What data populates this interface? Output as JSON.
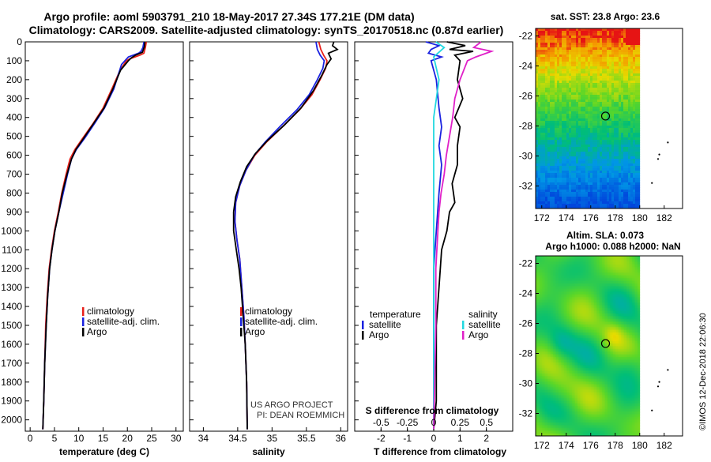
{
  "header": {
    "title_line1": "Argo profile: aoml 5903791_210 18-May-2017 27.34S 177.21E (DM data)",
    "title_line2": "Climatology: CARS2009. Satellite-adjusted climatology: synTS_20170518.nc (0.87d earlier)"
  },
  "colors": {
    "climatology": "#e8201a",
    "satellite": "#1a22e0",
    "argo": "#000000",
    "sal_satellite": "#22d8e0",
    "sal_argo": "#e020c8"
  },
  "depth_axis": {
    "ticks": [
      0,
      100,
      200,
      300,
      400,
      500,
      600,
      700,
      800,
      900,
      1000,
      1100,
      1200,
      1300,
      1400,
      1500,
      1600,
      1700,
      1800,
      1900,
      2000
    ],
    "labels": [
      "0",
      "100",
      "200",
      "300",
      "400",
      "500",
      "600",
      "700",
      "800",
      "900",
      "1000",
      "1100",
      "1200",
      "1300",
      "1400",
      "1500",
      "1600",
      "1700",
      "1800",
      "1900",
      "2000"
    ],
    "range": [
      0,
      2060
    ]
  },
  "annotation": {
    "line1": "US ARGO PROJECT",
    "line2": "PI: DEAN ROEMMICH"
  },
  "watermark": "©IMOS 12-Dec-2018 22:06:30",
  "chart_data": [
    {
      "type": "line",
      "name": "temperature-profile",
      "xlabel": "temperature (deg C)",
      "xlim": [
        -1,
        31.5
      ],
      "xticks": [
        0,
        5,
        10,
        15,
        20,
        25,
        30
      ],
      "xticklabels": [
        "0",
        "5",
        "10",
        "15",
        "20",
        "25",
        "30"
      ],
      "legend": [
        "climatology",
        "satellite-adj. clim.",
        "Argo"
      ],
      "series": [
        {
          "name": "climatology",
          "color_key": "climatology",
          "points": [
            [
              23.9,
              0
            ],
            [
              23.7,
              30
            ],
            [
              23.4,
              60
            ],
            [
              22.6,
              70
            ],
            [
              20.5,
              90
            ],
            [
              19.8,
              100
            ],
            [
              18.5,
              150
            ],
            [
              16.8,
              250
            ],
            [
              15.0,
              350
            ],
            [
              13.0,
              430
            ],
            [
              10.8,
              510
            ],
            [
              9.2,
              570
            ],
            [
              8.2,
              620
            ],
            [
              7.4,
              700
            ],
            [
              6.5,
              800
            ],
            [
              5.8,
              900
            ],
            [
              5.0,
              1000
            ],
            [
              4.4,
              1100
            ],
            [
              3.9,
              1200
            ],
            [
              3.5,
              1350
            ],
            [
              3.2,
              1500
            ],
            [
              3.0,
              1700
            ],
            [
              2.8,
              1900
            ],
            [
              2.6,
              2050
            ]
          ]
        },
        {
          "name": "satellite-adj. clim.",
          "color_key": "satellite",
          "points": [
            [
              23.4,
              0
            ],
            [
              23.2,
              30
            ],
            [
              22.8,
              50
            ],
            [
              22.3,
              60
            ],
            [
              20.2,
              80
            ],
            [
              18.8,
              120
            ],
            [
              17.2,
              250
            ],
            [
              15.3,
              350
            ],
            [
              13.3,
              430
            ],
            [
              11.2,
              510
            ],
            [
              9.5,
              570
            ],
            [
              8.5,
              620
            ],
            [
              7.7,
              700
            ],
            [
              6.8,
              800
            ],
            [
              5.9,
              900
            ],
            [
              5.1,
              1000
            ],
            [
              4.5,
              1100
            ],
            [
              4.0,
              1200
            ],
            [
              3.6,
              1350
            ],
            [
              3.3,
              1500
            ],
            [
              3.0,
              1700
            ],
            [
              2.8,
              1900
            ],
            [
              2.6,
              2050
            ]
          ]
        },
        {
          "name": "Argo",
          "color_key": "argo",
          "points": [
            [
              23.6,
              0
            ],
            [
              23.5,
              25
            ],
            [
              23.1,
              55
            ],
            [
              21.7,
              70
            ],
            [
              20.8,
              85
            ],
            [
              20.2,
              100
            ],
            [
              18.6,
              150
            ],
            [
              17.0,
              250
            ],
            [
              15.2,
              350
            ],
            [
              13.1,
              430
            ],
            [
              11.0,
              510
            ],
            [
              9.4,
              570
            ],
            [
              8.5,
              620
            ],
            [
              7.6,
              700
            ],
            [
              6.6,
              800
            ],
            [
              5.9,
              900
            ],
            [
              5.1,
              1000
            ],
            [
              4.5,
              1100
            ],
            [
              4.0,
              1200
            ],
            [
              3.6,
              1350
            ],
            [
              3.3,
              1500
            ],
            [
              3.0,
              1700
            ],
            [
              2.8,
              1900
            ],
            [
              2.6,
              2050
            ]
          ]
        }
      ]
    },
    {
      "type": "line",
      "name": "salinity-profile",
      "xlabel": "salinity",
      "xlim": [
        33.8,
        36.1
      ],
      "xticks": [
        34,
        34.5,
        35,
        35.5,
        36
      ],
      "xticklabels": [
        "34",
        "34.5",
        "35",
        "35.5",
        "36"
      ],
      "legend": [
        "climatology",
        "satellite-adj. clim.",
        "Argo"
      ],
      "series": [
        {
          "name": "climatology",
          "color_key": "climatology",
          "points": [
            [
              35.68,
              0
            ],
            [
              35.71,
              40
            ],
            [
              35.75,
              70
            ],
            [
              35.8,
              100
            ],
            [
              35.78,
              140
            ],
            [
              35.7,
              200
            ],
            [
              35.58,
              280
            ],
            [
              35.4,
              360
            ],
            [
              35.15,
              450
            ],
            [
              34.92,
              530
            ],
            [
              34.75,
              600
            ],
            [
              34.62,
              680
            ],
            [
              34.53,
              760
            ],
            [
              34.47,
              850
            ],
            [
              34.46,
              950
            ],
            [
              34.49,
              1050
            ],
            [
              34.53,
              1150
            ],
            [
              34.56,
              1300
            ],
            [
              34.59,
              1450
            ],
            [
              34.61,
              1600
            ],
            [
              34.63,
              1800
            ],
            [
              34.64,
              2050
            ]
          ]
        },
        {
          "name": "satellite-adj. clim.",
          "color_key": "satellite",
          "points": [
            [
              35.64,
              0
            ],
            [
              35.66,
              40
            ],
            [
              35.7,
              70
            ],
            [
              35.76,
              100
            ],
            [
              35.74,
              140
            ],
            [
              35.66,
              200
            ],
            [
              35.54,
              280
            ],
            [
              35.36,
              360
            ],
            [
              35.11,
              450
            ],
            [
              34.9,
              530
            ],
            [
              34.74,
              600
            ],
            [
              34.62,
              680
            ],
            [
              34.53,
              760
            ],
            [
              34.47,
              850
            ],
            [
              34.46,
              950
            ],
            [
              34.49,
              1050
            ],
            [
              34.53,
              1150
            ],
            [
              34.56,
              1300
            ],
            [
              34.59,
              1450
            ],
            [
              34.61,
              1600
            ],
            [
              34.63,
              1800
            ],
            [
              34.64,
              2050
            ]
          ]
        },
        {
          "name": "Argo",
          "color_key": "argo",
          "points": [
            [
              35.9,
              0
            ],
            [
              35.88,
              20
            ],
            [
              35.95,
              40
            ],
            [
              35.82,
              60
            ],
            [
              35.86,
              90
            ],
            [
              35.8,
              120
            ],
            [
              35.72,
              180
            ],
            [
              35.6,
              260
            ],
            [
              35.42,
              350
            ],
            [
              35.18,
              440
            ],
            [
              34.94,
              520
            ],
            [
              34.76,
              590
            ],
            [
              34.63,
              660
            ],
            [
              34.54,
              740
            ],
            [
              34.47,
              820
            ],
            [
              34.44,
              900
            ],
            [
              34.44,
              1000
            ],
            [
              34.48,
              1100
            ],
            [
              34.52,
              1200
            ],
            [
              34.55,
              1300
            ],
            [
              34.58,
              1450
            ],
            [
              34.61,
              1600
            ],
            [
              34.63,
              1800
            ],
            [
              34.64,
              2050
            ]
          ]
        }
      ]
    },
    {
      "type": "line",
      "name": "difference-profile",
      "xlabel": "T difference from climatology",
      "xlim": [
        -3,
        3
      ],
      "xticks": [
        -2,
        -1,
        0,
        1,
        2
      ],
      "xticklabels": [
        "-2",
        "-1",
        "0",
        "1",
        "2"
      ],
      "top_label": "S difference from climatology",
      "top_ticks": [
        -0.5,
        -0.25,
        0,
        0.25,
        0.5
      ],
      "top_ticklabels": [
        "-0.5",
        "-0.25",
        "0",
        "0.25",
        "0.5"
      ],
      "legend_left_title": "temperature",
      "legend_left": [
        "satellite",
        "Argo"
      ],
      "legend_right_title": "salinity",
      "legend_right": [
        "satellite",
        "Argo"
      ],
      "series": [
        {
          "name": "temperature satellite",
          "color_key": "satellite",
          "points": [
            [
              -0.3,
              0
            ],
            [
              0.2,
              20
            ],
            [
              -0.1,
              40
            ],
            [
              -0.2,
              60
            ],
            [
              0.3,
              80
            ],
            [
              -0.1,
              100
            ],
            [
              0.1,
              200
            ],
            [
              0.2,
              350
            ],
            [
              0.3,
              450
            ],
            [
              0.2,
              550
            ],
            [
              0.3,
              650
            ],
            [
              0.2,
              800
            ],
            [
              0.1,
              1000
            ],
            [
              0.0,
              1200
            ],
            [
              0.0,
              1500
            ],
            [
              0.0,
              1800
            ],
            [
              0.0,
              2050
            ]
          ]
        },
        {
          "name": "temperature Argo",
          "color_key": "argo",
          "points": [
            [
              0.5,
              0
            ],
            [
              1.2,
              20
            ],
            [
              0.6,
              40
            ],
            [
              1.5,
              50
            ],
            [
              0.8,
              70
            ],
            [
              1.0,
              100
            ],
            [
              0.9,
              200
            ],
            [
              1.1,
              300
            ],
            [
              0.8,
              400
            ],
            [
              1.0,
              450
            ],
            [
              0.9,
              550
            ],
            [
              0.9,
              650
            ],
            [
              0.7,
              750
            ],
            [
              0.8,
              850
            ],
            [
              0.6,
              900
            ],
            [
              0.5,
              1000
            ],
            [
              0.3,
              1100
            ],
            [
              0.2,
              1300
            ],
            [
              0.1,
              1500
            ],
            [
              0.1,
              1700
            ],
            [
              0.1,
              1900
            ],
            [
              0.0,
              2050
            ]
          ]
        },
        {
          "name": "salinity satellite",
          "color_key": "sal_satellite",
          "points": [
            [
              0.02,
              0
            ],
            [
              0.1,
              30
            ],
            [
              0.0,
              80
            ],
            [
              0.05,
              200
            ],
            [
              0.0,
              400
            ],
            [
              0.0,
              800
            ],
            [
              0.0,
              1200
            ],
            [
              0.0,
              1600
            ],
            [
              0.0,
              2050
            ]
          ]
        },
        {
          "name": "salinity Argo",
          "color_key": "sal_argo",
          "points": [
            [
              0.45,
              0
            ],
            [
              0.38,
              30
            ],
            [
              0.55,
              50
            ],
            [
              0.4,
              80
            ],
            [
              0.32,
              100
            ],
            [
              0.25,
              200
            ],
            [
              0.2,
              300
            ],
            [
              0.18,
              400
            ],
            [
              0.15,
              500
            ],
            [
              0.12,
              600
            ],
            [
              0.1,
              700
            ],
            [
              0.07,
              800
            ],
            [
              0.05,
              900
            ],
            [
              0.04,
              1000
            ],
            [
              0.02,
              1200
            ],
            [
              0.02,
              1500
            ],
            [
              0.0,
              2050
            ]
          ]
        }
      ]
    },
    {
      "type": "heatmap",
      "name": "sst-map",
      "title": "sat. SST: 23.8 Argo: 23.6",
      "xlim": [
        171.5,
        183.5
      ],
      "ylim": [
        -33.5,
        -21.5
      ],
      "xticks": [
        172,
        174,
        176,
        178,
        180,
        182
      ],
      "xticklabels": [
        "172",
        "174",
        "176",
        "178",
        "180",
        "182"
      ],
      "yticks": [
        -22,
        -24,
        -26,
        -28,
        -30,
        -32
      ],
      "yticklabels": [
        "-22",
        "-24",
        "-26",
        "-28",
        "-30",
        "-32"
      ],
      "data_east_limit": 180,
      "float_position": [
        177.21,
        -27.34
      ],
      "islands": [
        [
          182.3,
          -29.1
        ],
        [
          181.6,
          -29.9
        ],
        [
          181.5,
          -30.2
        ],
        [
          181.0,
          -31.8
        ]
      ]
    },
    {
      "type": "heatmap",
      "name": "sla-map",
      "title_line1": "Altim. SLA: 0.073",
      "title_line2": "Argo h1000: 0.088 h2000: NaN",
      "xlim": [
        171.5,
        183.5
      ],
      "ylim": [
        -33.5,
        -21.5
      ],
      "xticks": [
        172,
        174,
        176,
        178,
        180,
        182
      ],
      "xticklabels": [
        "172",
        "174",
        "176",
        "178",
        "180",
        "182"
      ],
      "yticks": [
        -22,
        -24,
        -26,
        -28,
        -30,
        -32
      ],
      "yticklabels": [
        "-22",
        "-24",
        "-26",
        "-28",
        "-30",
        "-32"
      ],
      "data_east_limit": 180,
      "float_position": [
        177.21,
        -27.34
      ],
      "islands": [
        [
          182.3,
          -29.1
        ],
        [
          181.6,
          -29.9
        ],
        [
          181.5,
          -30.2
        ],
        [
          181.0,
          -31.8
        ]
      ]
    }
  ]
}
